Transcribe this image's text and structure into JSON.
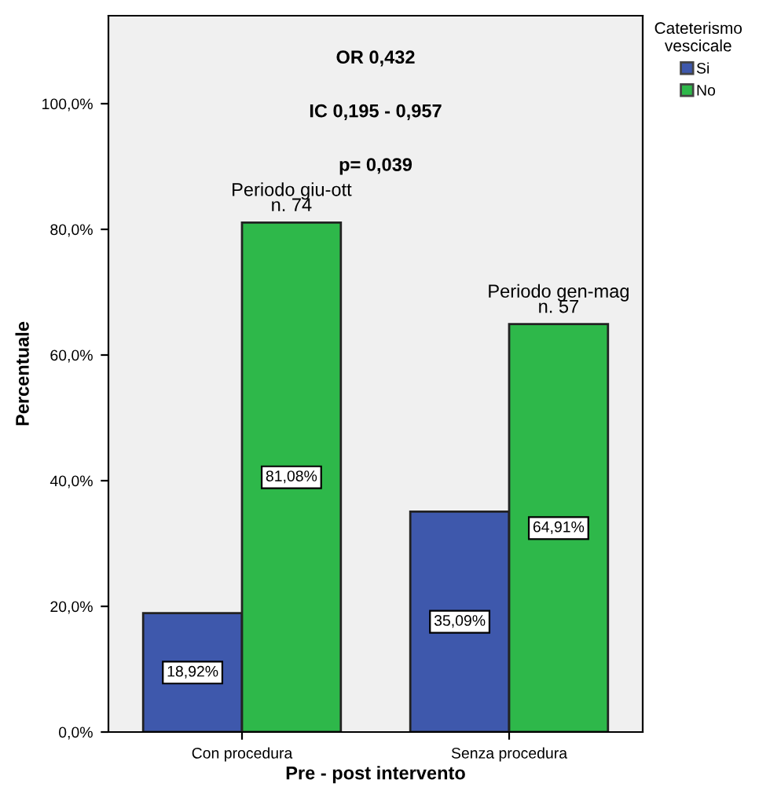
{
  "chart_data": {
    "type": "bar",
    "xlabel": "Pre - post intervento",
    "ylabel": "Percentuale",
    "legend_title": "Cateterismo\nvescicale",
    "categories": [
      "Con procedura",
      "Senza procedura"
    ],
    "series": [
      {
        "name": "Si",
        "color": "#3e58ac",
        "values": [
          18.92,
          35.09
        ],
        "value_labels": [
          "18,92%",
          "35,09%"
        ]
      },
      {
        "name": "No",
        "color": "#2eb84a",
        "values": [
          81.08,
          64.91
        ],
        "value_labels": [
          "81,08%",
          "64,91%"
        ]
      }
    ],
    "ylim": [
      0,
      114
    ],
    "yticks": [
      {
        "value": 0,
        "label": "0,0%"
      },
      {
        "value": 20,
        "label": "20,0%"
      },
      {
        "value": 40,
        "label": "40,0%"
      },
      {
        "value": 60,
        "label": "60,0%"
      },
      {
        "value": 80,
        "label": "80,0%"
      },
      {
        "value": 100,
        "label": "100,0%"
      }
    ],
    "annotations": [
      "OR 0,432",
      "IC 0,195 - 0,957",
      "p= 0,039",
      "Periodo giu-ott\nn. 74",
      "Periodo gen-mag\nn. 57"
    ],
    "grid": false,
    "legend": "right"
  }
}
